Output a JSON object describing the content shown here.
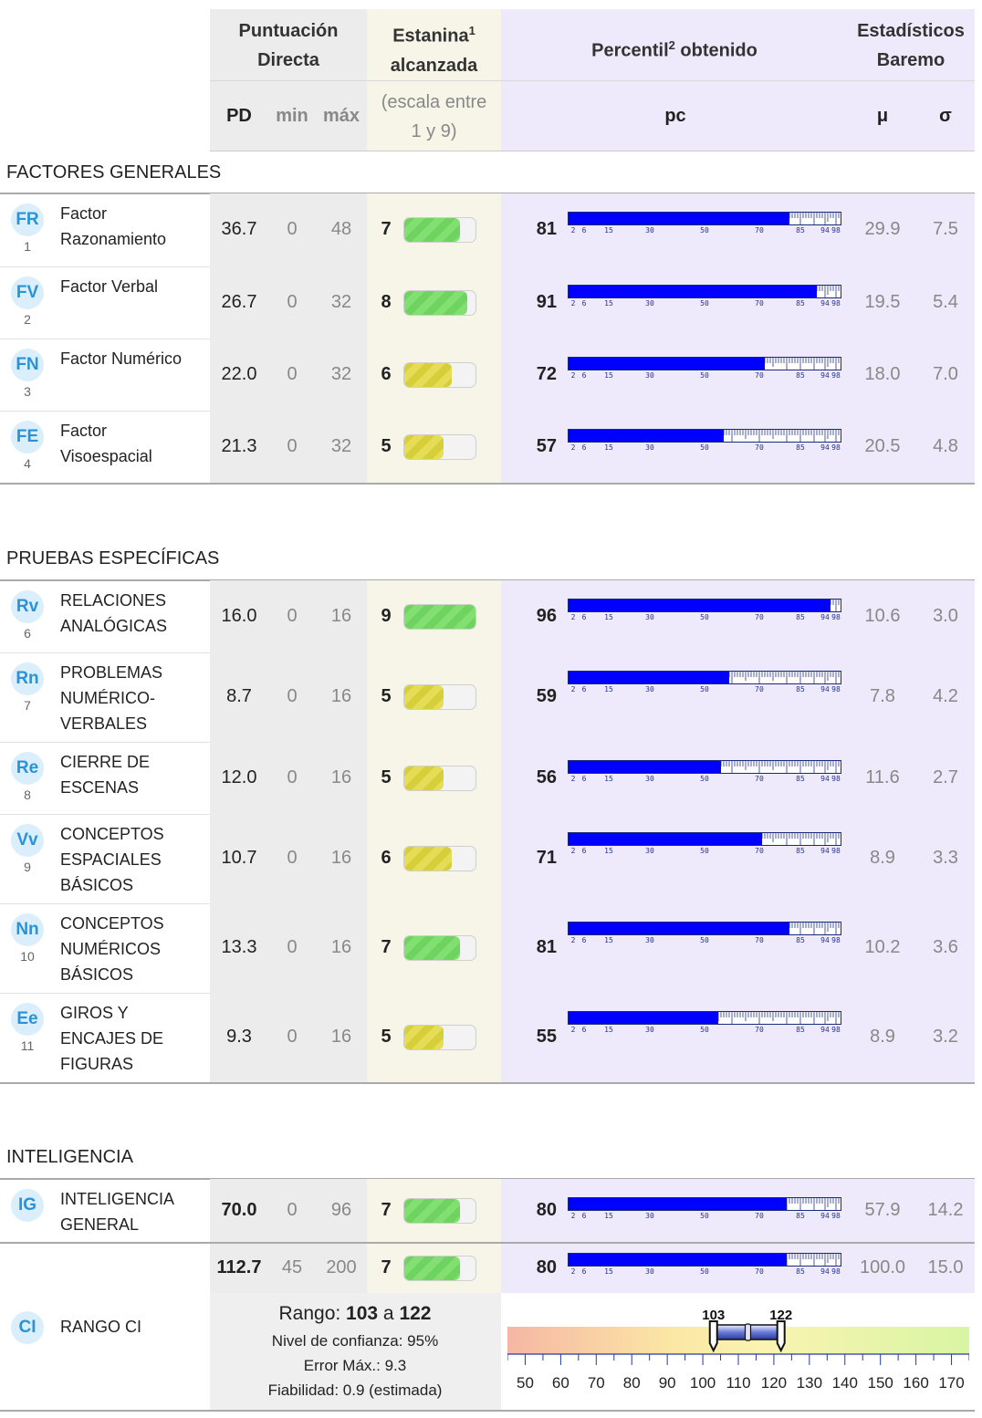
{
  "header": {
    "pd_title_1": "Puntuación",
    "pd_title_2": "Directa",
    "estanina_title_1": "Estanina",
    "estanina_sup": "1",
    "estanina_title_2": "alcanzada",
    "percentil_title": "Percentil",
    "percentil_sup": "2",
    "percentil_title_2": "obtenido",
    "estad_title_1": "Estadísticos",
    "estad_title_2": "Baremo",
    "pd": "PD",
    "min": "min",
    "max": "máx",
    "escala_1": "(escala entre",
    "escala_2": "1 y 9)",
    "pc": "pc",
    "mu": "μ",
    "sigma": "σ"
  },
  "percentile_ticks": [
    "2",
    "6",
    "15",
    "30",
    "50",
    "70",
    "85",
    "94",
    "98"
  ],
  "colors": {
    "bar": "#0000ff",
    "badge_text": "#2a93d8",
    "badge_bg": "#dbeefb",
    "stanine_green": "#6fd45f",
    "stanine_yellow": "#d6cf3a"
  },
  "sections": [
    {
      "title": "FACTORES GENERALES",
      "rows": [
        {
          "code": "FR",
          "num": "1",
          "name": [
            "Factor",
            "Razonamiento"
          ],
          "pd": "36.7",
          "min": "0",
          "max": "48",
          "stanine": 7,
          "pc": 81,
          "mu": "29.9",
          "sigma": "7.5"
        },
        {
          "code": "FV",
          "num": "2",
          "name": [
            "Factor Verbal"
          ],
          "pd": "26.7",
          "min": "0",
          "max": "32",
          "stanine": 8,
          "pc": 91,
          "mu": "19.5",
          "sigma": "5.4"
        },
        {
          "code": "FN",
          "num": "3",
          "name": [
            "Factor Numérico"
          ],
          "pd": "22.0",
          "min": "0",
          "max": "32",
          "stanine": 6,
          "pc": 72,
          "mu": "18.0",
          "sigma": "7.0"
        },
        {
          "code": "FE",
          "num": "4",
          "name": [
            "Factor",
            "Visoespacial"
          ],
          "pd": "21.3",
          "min": "0",
          "max": "32",
          "stanine": 5,
          "pc": 57,
          "mu": "20.5",
          "sigma": "4.8"
        }
      ]
    },
    {
      "title": "PRUEBAS ESPECÍFICAS",
      "rows": [
        {
          "code": "Rv",
          "num": "6",
          "name": [
            "RELACIONES",
            "ANALÓGICAS"
          ],
          "pd": "16.0",
          "min": "0",
          "max": "16",
          "stanine": 9,
          "pc": 96,
          "mu": "10.6",
          "sigma": "3.0"
        },
        {
          "code": "Rn",
          "num": "7",
          "name": [
            "PROBLEMAS",
            "NUMÉRICO-",
            "VERBALES"
          ],
          "pd": "8.7",
          "min": "0",
          "max": "16",
          "stanine": 5,
          "pc": 59,
          "mu": "7.8",
          "sigma": "4.2"
        },
        {
          "code": "Re",
          "num": "8",
          "name": [
            "CIERRE DE",
            "ESCENAS"
          ],
          "pd": "12.0",
          "min": "0",
          "max": "16",
          "stanine": 5,
          "pc": 56,
          "mu": "11.6",
          "sigma": "2.7"
        },
        {
          "code": "Vv",
          "num": "9",
          "name": [
            "CONCEPTOS",
            "ESPACIALES",
            "BÁSICOS"
          ],
          "pd": "10.7",
          "min": "0",
          "max": "16",
          "stanine": 6,
          "pc": 71,
          "mu": "8.9",
          "sigma": "3.3"
        },
        {
          "code": "Nn",
          "num": "10",
          "name": [
            "CONCEPTOS",
            "NUMÉRICOS",
            "BÁSICOS"
          ],
          "pd": "13.3",
          "min": "0",
          "max": "16",
          "stanine": 7,
          "pc": 81,
          "mu": "10.2",
          "sigma": "3.6"
        },
        {
          "code": "Ee",
          "num": "11",
          "name": [
            "GIROS Y",
            "ENCAJES DE",
            "FIGURAS"
          ],
          "pd": "9.3",
          "min": "0",
          "max": "16",
          "stanine": 5,
          "pc": 55,
          "mu": "8.9",
          "sigma": "3.2"
        }
      ]
    },
    {
      "title": "INTELIGENCIA",
      "rows": [
        {
          "code": "IG",
          "num": "",
          "name": [
            "INTELIGENCIA",
            "GENERAL"
          ],
          "pd": "70.0",
          "min": "0",
          "max": "96",
          "stanine": 7,
          "pc": 80,
          "mu": "57.9",
          "sigma": "14.2"
        }
      ]
    }
  ],
  "ci": {
    "code": "CI",
    "name": "RANGO CI",
    "pd": "112.7",
    "min": "45",
    "max": "200",
    "stanine": 7,
    "pc": 80,
    "mu": "100.0",
    "sigma": "15.0",
    "rango_label": "Rango:",
    "rango_from": "103",
    "rango_a": "a",
    "rango_to": "122",
    "confianza": "Nivel de confianza: 95%",
    "error": "Error Máx.: 9.3",
    "fiabilidad": "Fiabilidad: 0.9 (estimada)",
    "scale": [
      "50",
      "60",
      "70",
      "80",
      "90",
      "100",
      "110",
      "120",
      "130",
      "140",
      "150",
      "160",
      "170"
    ],
    "scale_min": 45,
    "scale_max": 175,
    "low": 103,
    "high": 122,
    "point": 112.7
  }
}
